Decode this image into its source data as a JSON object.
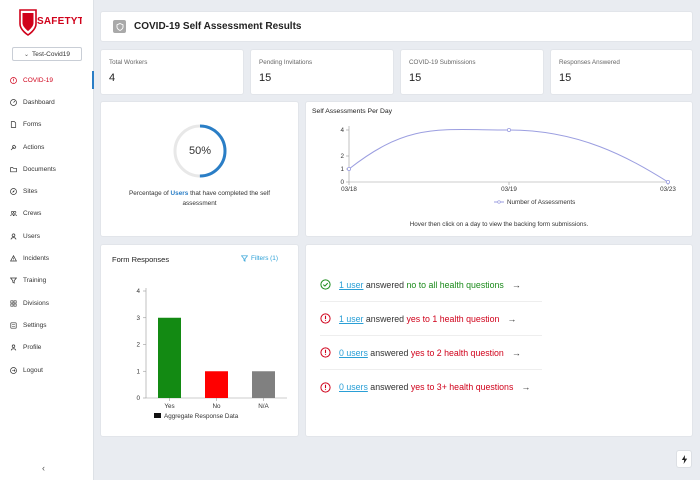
{
  "brand": {
    "name": "SafetyTek",
    "accent": "#d0021b",
    "link": "#2a9fd6"
  },
  "org_select": {
    "value": "Test-Covid19"
  },
  "nav": [
    {
      "label": "COVID-19",
      "icon": "alert-circle-icon",
      "active": true
    },
    {
      "label": "Dashboard",
      "icon": "gauge-icon"
    },
    {
      "label": "Forms",
      "icon": "document-icon"
    },
    {
      "label": "Actions",
      "icon": "wrench-icon"
    },
    {
      "label": "Documents",
      "icon": "folder-icon"
    },
    {
      "label": "Sites",
      "icon": "compass-icon"
    },
    {
      "label": "Crews",
      "icon": "group-icon"
    },
    {
      "label": "Users",
      "icon": "user-icon"
    },
    {
      "label": "Incidents",
      "icon": "warning-icon"
    },
    {
      "label": "Training",
      "icon": "filter-icon"
    },
    {
      "label": "Divisions",
      "icon": "grid-icon"
    },
    {
      "label": "Settings",
      "icon": "settings-icon"
    },
    {
      "label": "Profile",
      "icon": "person-icon"
    },
    {
      "label": "Logout",
      "icon": "logout-icon"
    }
  ],
  "collapse_glyph": "‹",
  "header": {
    "title": "COVID-19 Self Assessment Results"
  },
  "stats": [
    {
      "label": "Total Workers",
      "value": "4"
    },
    {
      "label": "Pending Invitations",
      "value": "15"
    },
    {
      "label": "COVID-19 Submissions",
      "value": "15"
    },
    {
      "label": "Responses Answered",
      "value": "15"
    }
  ],
  "completion": {
    "percent": 50,
    "percent_text": "50%",
    "caption_pre": "Percentage of ",
    "caption_hl": "Users",
    "caption_post": " that have completed the self assessment"
  },
  "chart_data": [
    {
      "type": "line",
      "title": "Self Assessments Per Day",
      "x": [
        "03/18",
        "03/19",
        "03/23"
      ],
      "series": [
        {
          "name": "Number of Assessments",
          "values": [
            1,
            4,
            0
          ],
          "color": "#9b9ee0"
        }
      ],
      "ylim": [
        0,
        4
      ],
      "yticks": [
        0,
        1,
        2,
        4
      ],
      "smooth": true,
      "legend": "bottom",
      "hint": "Hover then click on a day to view the backing form submissions."
    },
    {
      "type": "bar",
      "title": "Form Responses",
      "categories": [
        "Yes",
        "No",
        "N/A"
      ],
      "values": [
        3,
        1,
        1
      ],
      "colors": [
        "#138a13",
        "#ff0000",
        "#808080"
      ],
      "ylim": [
        0,
        4
      ],
      "yticks": [
        0,
        1,
        2,
        3,
        4
      ],
      "legend": "bottom",
      "series_name": "Aggregate Response Data"
    }
  ],
  "filters_label": "Filters (1)",
  "responses": [
    {
      "status": "ok",
      "count": "1 user",
      "mid": " answered ",
      "desc": "no to all health questions"
    },
    {
      "status": "bad",
      "count": "1 user",
      "mid": " answered ",
      "desc": "yes to 1 health question"
    },
    {
      "status": "bad",
      "count": "0 users",
      "mid": " answered ",
      "desc": "yes to 2 health question"
    },
    {
      "status": "bad",
      "count": "0 users",
      "mid": " answered ",
      "desc": "yes to 3+ health questions"
    }
  ]
}
